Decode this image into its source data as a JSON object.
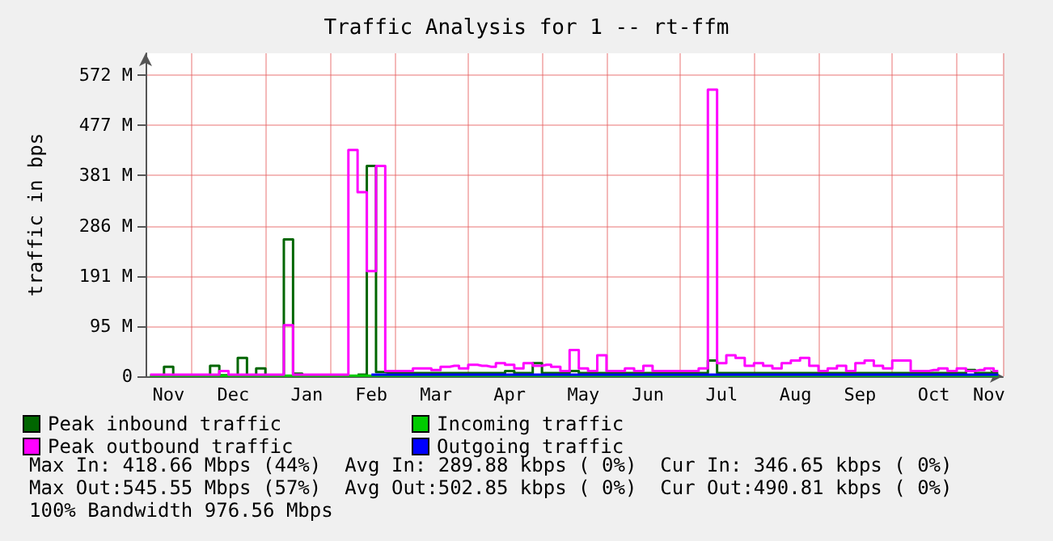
{
  "chart_data": {
    "type": "step",
    "title": "Traffic Analysis for 1 -- rt-ffm",
    "ylabel": "traffic in bps",
    "categories": [
      null,
      null,
      "Nov",
      null,
      null,
      null,
      null,
      null,
      null,
      "Dec",
      null,
      null,
      null,
      null,
      null,
      null,
      null,
      "Jan",
      null,
      null,
      null,
      null,
      null,
      null,
      "Feb",
      null,
      null,
      null,
      null,
      null,
      null,
      "Mar",
      null,
      null,
      null,
      null,
      null,
      null,
      null,
      "Apr",
      null,
      null,
      null,
      null,
      null,
      null,
      null,
      "May",
      null,
      null,
      null,
      null,
      null,
      null,
      "Jun",
      null,
      null,
      null,
      null,
      null,
      null,
      null,
      "Jul",
      null,
      null,
      null,
      null,
      null,
      null,
      null,
      "Aug",
      null,
      null,
      null,
      null,
      null,
      null,
      "Sep",
      null,
      null,
      null,
      null,
      null,
      null,
      null,
      "Oct",
      null,
      null,
      null,
      null,
      null,
      "Nov",
      null
    ],
    "series": [
      {
        "name": "Peak inbound traffic",
        "color": "#006600",
        "values": [
          2,
          2,
          18,
          2,
          2,
          2,
          2,
          20,
          2,
          2,
          35,
          2,
          15,
          2,
          2,
          260,
          5,
          2,
          2,
          2,
          2,
          2,
          null,
          3,
          400,
          8,
          6,
          6,
          6,
          6,
          6,
          6,
          6,
          6,
          6,
          6,
          6,
          6,
          6,
          10,
          6,
          6,
          25,
          6,
          6,
          6,
          10,
          6,
          6,
          6,
          6,
          6,
          6,
          6,
          6,
          6,
          6,
          6,
          6,
          6,
          6,
          30,
          6,
          6,
          6,
          6,
          6,
          6,
          6,
          6,
          6,
          6,
          6,
          6,
          6,
          6,
          6,
          6,
          6,
          6,
          6,
          6,
          6,
          6,
          6,
          6,
          6,
          6,
          6,
          12,
          6,
          6,
          6
        ]
      },
      {
        "name": "Incoming traffic",
        "color": "#00cc00",
        "type": "area",
        "values": [
          1,
          1,
          1,
          1,
          1,
          1,
          1,
          1,
          1,
          1,
          1,
          1,
          1,
          1,
          1,
          1,
          1,
          1,
          1,
          1,
          1,
          1,
          1,
          1,
          1,
          1,
          1,
          1,
          1,
          1,
          1,
          1,
          1,
          1,
          1,
          1,
          1,
          1,
          1,
          1,
          1,
          1,
          1,
          1,
          1,
          1,
          1,
          1,
          1,
          1,
          1,
          1,
          1,
          1,
          1,
          1,
          1,
          1,
          1,
          1,
          1,
          1,
          1,
          1,
          1,
          1,
          1,
          1,
          1,
          1,
          1,
          1,
          1,
          1,
          1,
          1,
          1,
          1,
          1,
          1,
          1,
          1,
          1,
          1,
          1,
          1,
          1,
          1,
          1,
          1,
          1,
          1,
          1
        ]
      },
      {
        "name": "Peak outbound traffic",
        "color": "#ff00ff",
        "values": [
          3,
          3,
          3,
          3,
          3,
          3,
          3,
          3,
          10,
          3,
          3,
          3,
          3,
          3,
          3,
          97,
          3,
          3,
          3,
          3,
          3,
          3,
          430,
          350,
          200,
          400,
          10,
          10,
          10,
          15,
          15,
          12,
          18,
          20,
          15,
          22,
          20,
          18,
          25,
          22,
          15,
          25,
          20,
          22,
          18,
          10,
          50,
          15,
          10,
          40,
          10,
          10,
          15,
          10,
          20,
          10,
          10,
          10,
          10,
          10,
          15,
          545,
          25,
          40,
          35,
          20,
          25,
          20,
          15,
          25,
          30,
          35,
          20,
          10,
          15,
          20,
          10,
          25,
          30,
          20,
          15,
          30,
          30,
          10,
          10,
          12,
          15,
          10,
          15,
          10,
          12,
          15,
          10
        ]
      },
      {
        "name": "Outgoing traffic",
        "color": "#0000ff",
        "type": "line",
        "values": [
          null,
          null,
          null,
          null,
          null,
          null,
          null,
          null,
          null,
          null,
          null,
          null,
          null,
          null,
          null,
          null,
          null,
          null,
          null,
          null,
          null,
          null,
          null,
          null,
          3,
          3,
          3,
          3,
          3,
          3,
          3,
          3,
          3,
          3,
          3,
          3,
          3,
          3,
          3,
          3,
          3,
          3,
          3,
          3,
          3,
          3,
          3,
          3,
          3,
          3,
          3,
          3,
          3,
          3,
          3,
          3,
          3,
          3,
          3,
          3,
          3,
          3,
          3,
          3,
          3,
          3,
          3,
          3,
          3,
          3,
          3,
          3,
          3,
          3,
          3,
          3,
          3,
          3,
          3,
          3,
          3,
          3,
          3,
          3,
          3,
          3,
          3,
          3,
          3,
          3,
          3,
          3,
          3
        ]
      }
    ],
    "ylim": [
      0,
      614
    ],
    "yticks": [
      0,
      {
        "value": 95.37,
        "label": "95 M"
      },
      {
        "value": 190.73,
        "label": "191 M"
      },
      {
        "value": 286.1,
        "label": "286 M"
      },
      {
        "value": 381.47,
        "label": "381 M"
      },
      {
        "value": 476.84,
        "label": "477 M"
      },
      {
        "value": 572.2,
        "label": "572 M"
      }
    ],
    "grid": true,
    "legend": "bottom",
    "annotations": [
      "Max In: 418.66 Mbps (44%)  Avg In: 289.88 kbps ( 0%)  Cur In: 346.65 kbps ( 0%)",
      "Max Out:545.55 Mbps (57%)  Avg Out:502.85 kbps ( 0%)  Cur Out:490.81 kbps ( 0%)",
      "100% Bandwidth 976.56 Mbps"
    ]
  }
}
